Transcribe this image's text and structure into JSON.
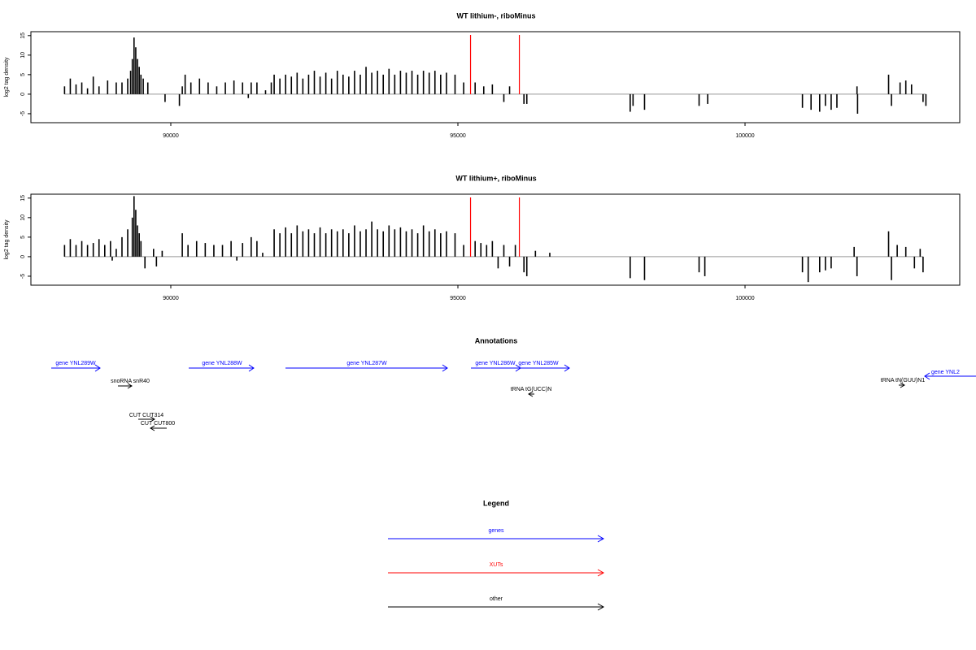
{
  "chart_data": [
    {
      "type": "bar",
      "title": "WT lithium-, riboMinus",
      "ylabel": "log2 tag density",
      "color": "#000000",
      "marker_color": "#ff0000",
      "xlim": [
        87564,
        103739
      ],
      "ylim": [
        -7.3,
        16
      ],
      "xticks": [
        90000,
        95000,
        100000
      ],
      "yticks": [
        -5,
        0,
        5,
        10,
        15
      ],
      "markers": [
        95220,
        96070
      ],
      "x": [
        88150,
        88250,
        88350,
        88450,
        88550,
        88650,
        88750,
        88900,
        89050,
        89150,
        89250,
        89300,
        89330,
        89360,
        89390,
        89420,
        89450,
        89480,
        89520,
        89600,
        89900,
        90150,
        90200,
        90250,
        90350,
        90500,
        90650,
        90800,
        90950,
        91100,
        91250,
        91350,
        91400,
        91500,
        91650,
        91750,
        91800,
        91900,
        92000,
        92100,
        92200,
        92300,
        92400,
        92500,
        92600,
        92700,
        92800,
        92900,
        93000,
        93100,
        93200,
        93300,
        93400,
        93500,
        93600,
        93700,
        93800,
        93900,
        94000,
        94100,
        94200,
        94300,
        94400,
        94500,
        94600,
        94700,
        94800,
        94950,
        95100,
        95300,
        95450,
        95600,
        95800,
        95900,
        96150,
        96200,
        98000,
        98050,
        98250,
        99200,
        99350,
        101000,
        101150,
        101300,
        101400,
        101500,
        101600,
        101950,
        101960,
        102500,
        102550,
        102700,
        102800,
        102900,
        103100,
        103150
      ],
      "values": [
        2,
        4,
        2.5,
        3,
        1.5,
        4.5,
        2,
        3.5,
        3,
        3,
        4,
        6,
        9,
        14.5,
        12,
        9,
        7,
        5,
        4,
        3,
        -2,
        -3,
        2,
        5,
        3,
        4,
        3,
        2,
        3,
        3.5,
        3,
        -1,
        3,
        3,
        1,
        3,
        5,
        4,
        5,
        4.5,
        5.5,
        4,
        5,
        6,
        4.5,
        5.5,
        4,
        6,
        5,
        4.5,
        6,
        5,
        7,
        5.5,
        6,
        5,
        6.5,
        5,
        6,
        5.5,
        6,
        5,
        6,
        5.5,
        6,
        5,
        5.5,
        5,
        3,
        3,
        2,
        2.5,
        -2,
        2,
        -2.5,
        -2.5,
        -4.5,
        -3,
        -4,
        -3,
        -2.5,
        -3.5,
        -4,
        -4.5,
        -3,
        -4,
        -3.5,
        2,
        -5,
        5,
        -3,
        3,
        3.5,
        2.5,
        -2,
        -3
      ]
    },
    {
      "type": "bar",
      "title": "WT lithium+, riboMinus",
      "ylabel": "log2 tag density",
      "color": "#000000",
      "marker_color": "#ff0000",
      "xlim": [
        87564,
        103739
      ],
      "ylim": [
        -7.3,
        16
      ],
      "xticks": [
        90000,
        95000,
        100000
      ],
      "yticks": [
        -5,
        0,
        5,
        10,
        15
      ],
      "markers": [
        95220,
        96070
      ],
      "x": [
        88150,
        88250,
        88350,
        88450,
        88550,
        88650,
        88750,
        88850,
        88950,
        88980,
        89050,
        89150,
        89250,
        89330,
        89360,
        89390,
        89420,
        89450,
        89480,
        89550,
        89700,
        89750,
        89850,
        90200,
        90300,
        90450,
        90600,
        90750,
        90900,
        91050,
        91150,
        91250,
        91400,
        91500,
        91600,
        91800,
        91900,
        92000,
        92100,
        92200,
        92300,
        92400,
        92500,
        92600,
        92700,
        92800,
        92900,
        93000,
        93100,
        93200,
        93300,
        93400,
        93500,
        93600,
        93700,
        93800,
        93900,
        94000,
        94100,
        94200,
        94300,
        94400,
        94500,
        94600,
        94700,
        94800,
        94950,
        95100,
        95300,
        95400,
        95500,
        95600,
        95700,
        95800,
        95900,
        96000,
        96150,
        96200,
        96350,
        96600,
        98000,
        98250,
        99200,
        99300,
        101000,
        101100,
        101300,
        101400,
        101500,
        101900,
        101950,
        102500,
        102550,
        102650,
        102800,
        102950,
        103050,
        103100
      ],
      "values": [
        3,
        4.5,
        3,
        4,
        3,
        3.5,
        4.5,
        3,
        4,
        -1,
        2,
        5,
        7,
        10,
        15.5,
        12,
        8,
        6,
        4,
        -3,
        2,
        -2.5,
        1.5,
        6,
        3,
        4,
        3.5,
        3,
        3,
        4,
        -1,
        3.5,
        5,
        4,
        1,
        7,
        6,
        7.5,
        6,
        8,
        6.5,
        7,
        6,
        7.5,
        6,
        7,
        6.5,
        7,
        6,
        8,
        6.5,
        7,
        9,
        7,
        6.5,
        8,
        7,
        7.5,
        6.5,
        7,
        6,
        8,
        6.5,
        7,
        6,
        6.5,
        6,
        3,
        4,
        3.5,
        3,
        4,
        -3,
        3,
        -2.5,
        3,
        -4,
        -5,
        1.5,
        1,
        -5.5,
        -6,
        -4,
        -5,
        -4,
        -6.5,
        -4,
        -3.5,
        -3,
        2.5,
        -5,
        6.5,
        -6,
        3,
        2.5,
        -3,
        2,
        -4
      ]
    }
  ],
  "annotations": {
    "title": "Annotations",
    "items": [
      {
        "label": "gene YNL289W"
      },
      {
        "label": "snoRNA snR40"
      },
      {
        "label": "gene YNL288W"
      },
      {
        "label": "gene YNL287W"
      },
      {
        "label": "gene YNL286W"
      },
      {
        "label": "gene YNL285W"
      },
      {
        "label": "tRNA tG(UCC)N"
      },
      {
        "label": "tRNA tN(GUU)N1"
      },
      {
        "label": "gene YNL2"
      },
      {
        "label": "CUT CUT314"
      },
      {
        "label": "CUT CUT800"
      }
    ]
  },
  "legend": {
    "title": "Legend",
    "items": [
      {
        "label": "genes"
      },
      {
        "label": "XUTs"
      },
      {
        "label": "other"
      }
    ]
  }
}
